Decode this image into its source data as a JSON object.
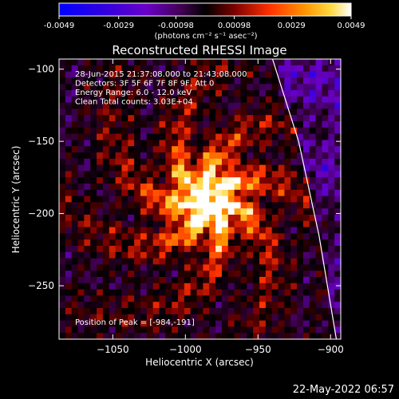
{
  "colorbar": {
    "tick_labels": [
      "-0.0049",
      "-0.0029",
      "-0.00098",
      "0.00098",
      "0.0029",
      "0.0049"
    ],
    "unit_label": "(photons cm⁻² s⁻¹ asec⁻²)",
    "range": [
      -0.0049,
      0.0049
    ]
  },
  "chart_data": {
    "type": "heatmap",
    "title": "Reconstructed RHESSI Image",
    "xlabel": "Heliocentric X (arcsec)",
    "ylabel": "Heliocentric Y (arcsec)",
    "xlim": [
      -1087,
      -893
    ],
    "ylim": [
      -287,
      -93
    ],
    "x_ticks": [
      -1050,
      -1000,
      -950,
      -900
    ],
    "x_tick_labels": [
      "−1050",
      "−1000",
      "−950",
      "−900"
    ],
    "y_ticks": [
      -100,
      -150,
      -200,
      -250
    ],
    "y_tick_labels": [
      "−100",
      "−150",
      "−200",
      "−250"
    ],
    "info_lines": [
      "28-Jun-2015 21:37:08.000 to 21:43:08.000",
      "Detectors: 3F 5F 6F 7F 8F 9F, Att 0",
      "Energy Range: 6.0 - 12.0 keV",
      "Clean    Total counts: 3.03E+04"
    ],
    "peak_label": "Position of Peak = [-984,-191]",
    "peak": [
      -984,
      -191
    ],
    "limb_curve": {
      "x": [
        -940,
        -922,
        -908,
        -896
      ],
      "y": [
        -93,
        -150,
        -215,
        -287
      ]
    }
  },
  "footer": {
    "date": "22-May-2022 06:57"
  },
  "colors": {
    "background": "#000000",
    "colormap": [
      "#0000ff",
      "#6a00c8",
      "#300030",
      "#000000",
      "#7a0000",
      "#ff3000",
      "#ff9400",
      "#ffd840",
      "#ffffff"
    ]
  }
}
